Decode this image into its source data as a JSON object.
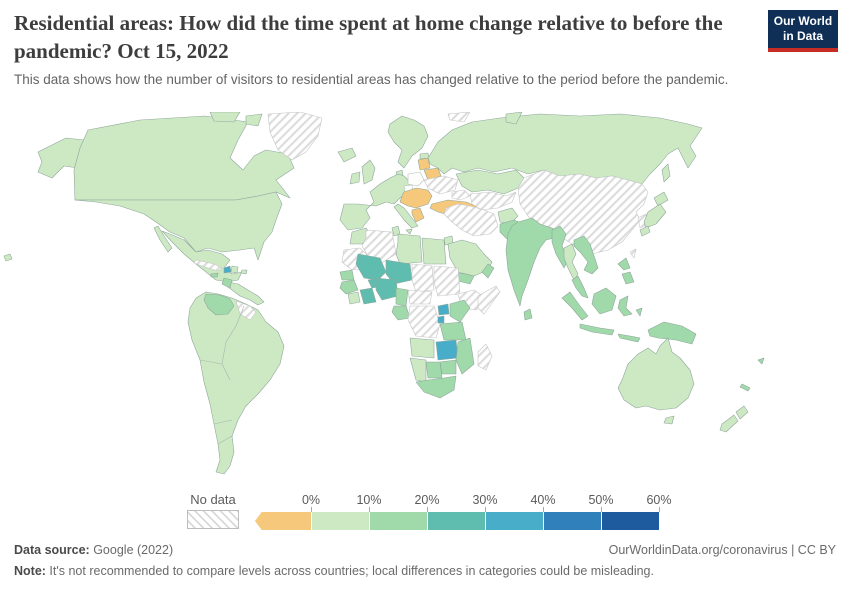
{
  "header": {
    "title": "Residential areas: How did the time spent at home change relative to before the pandemic? Oct 15, 2022",
    "subtitle": "This data shows how the number of visitors to residential areas has changed relative to the period before the pandemic.",
    "logo": {
      "line1": "Our World",
      "line2": "in Data"
    }
  },
  "colors": {
    "logo_bg": "#0f2f57",
    "logo_stripe": "#c62d25",
    "border_stroke": "#8fa79b",
    "nodata_stroke": "#c6c6c6"
  },
  "legend": {
    "no_data_label": "No data",
    "ticks": [
      "0%",
      "10%",
      "20%",
      "30%",
      "40%",
      "50%",
      "60%"
    ]
  },
  "footer": {
    "source_label": "Data source:",
    "source_value": " Google (2022)",
    "right_text": "OurWorldinData.org/coronavirus | CC BY",
    "note_label": "Note:",
    "note_value": " It's not recommended to compare levels across countries; local differences in categories could be misleading."
  },
  "chart_data": {
    "type": "choropleth",
    "title": "Residential areas: change in time spent at home relative to pre-pandemic",
    "date": "Oct 15, 2022",
    "unit": "% change vs. pre-pandemic baseline",
    "bins": [
      "<0%",
      "0-10%",
      "10-20%",
      "20-30%",
      "30-40%",
      "40-50%",
      "50-60%"
    ],
    "bin_colors": {
      "<0%": "#f6c87c",
      "~0%": "#fdfdfc",
      "0-10%": "#cde9c4",
      "10-20%": "#a0d9aa",
      "20-30%": "#5fbdb0",
      "30-40%": "#48adc9",
      "40-50%": "#2f80bb",
      "50-60%": "#1d5b9e",
      "No data": "hatch"
    },
    "countries": [
      {
        "name": "United States",
        "bin": "0-10%"
      },
      {
        "name": "Canada",
        "bin": "0-10%"
      },
      {
        "name": "Greenland",
        "bin": "No data"
      },
      {
        "name": "Iceland",
        "bin": "0-10%"
      },
      {
        "name": "Mexico",
        "bin": "0-10%"
      },
      {
        "name": "Guatemala",
        "bin": "10-20%"
      },
      {
        "name": "Honduras",
        "bin": "0-10%"
      },
      {
        "name": "Cuba",
        "bin": "No data"
      },
      {
        "name": "Haiti",
        "bin": "30-40%"
      },
      {
        "name": "Dominican Republic",
        "bin": "0-10%"
      },
      {
        "name": "Jamaica",
        "bin": "10-20%"
      },
      {
        "name": "Puerto Rico",
        "bin": "0-10%"
      },
      {
        "name": "Venezuela",
        "bin": "10-20%"
      },
      {
        "name": "Guyana",
        "bin": "No data"
      },
      {
        "name": "Brazil",
        "bin": "0-10%"
      },
      {
        "name": "Colombia",
        "bin": "0-10%"
      },
      {
        "name": "Peru",
        "bin": "0-10%"
      },
      {
        "name": "Bolivia",
        "bin": "0-10%"
      },
      {
        "name": "Chile",
        "bin": "0-10%"
      },
      {
        "name": "Argentina",
        "bin": "0-10%"
      },
      {
        "name": "United Kingdom",
        "bin": "0-10%"
      },
      {
        "name": "Ireland",
        "bin": "0-10%"
      },
      {
        "name": "France",
        "bin": "0-10%"
      },
      {
        "name": "Norway",
        "bin": "0-10%"
      },
      {
        "name": "Denmark",
        "bin": "0-10%"
      },
      {
        "name": "Estonia",
        "bin": "0-10%"
      },
      {
        "name": "Italy",
        "bin": "0-10%"
      },
      {
        "name": "Poland",
        "bin": "~0%"
      },
      {
        "name": "Czechia",
        "bin": "~0%"
      },
      {
        "name": "Latvia",
        "bin": "<0%"
      },
      {
        "name": "Belarus",
        "bin": "<0%"
      },
      {
        "name": "Ukraine",
        "bin": "No data"
      },
      {
        "name": "Hungary",
        "bin": "<0%"
      },
      {
        "name": "Greece",
        "bin": "<0%"
      },
      {
        "name": "Turkey",
        "bin": "<0%"
      },
      {
        "name": "Russia",
        "bin": "0-10%"
      },
      {
        "name": "Svalbard",
        "bin": "No data"
      },
      {
        "name": "Kazakhstan",
        "bin": "0-10%"
      },
      {
        "name": "Uzbekistan",
        "bin": "No data"
      },
      {
        "name": "Georgia",
        "bin": "No data"
      },
      {
        "name": "Iran",
        "bin": "No data"
      },
      {
        "name": "Jordan",
        "bin": "0-10%"
      },
      {
        "name": "Saudi Arabia",
        "bin": "0-10%"
      },
      {
        "name": "Yemen",
        "bin": "10-20%"
      },
      {
        "name": "Oman",
        "bin": "10-20%"
      },
      {
        "name": "Afghanistan",
        "bin": "0-10%"
      },
      {
        "name": "Pakistan",
        "bin": "10-20%"
      },
      {
        "name": "India",
        "bin": "10-20%"
      },
      {
        "name": "Sri Lanka",
        "bin": "10-20%"
      },
      {
        "name": "China",
        "bin": "No data"
      },
      {
        "name": "South Korea",
        "bin": "No data"
      },
      {
        "name": "Japan",
        "bin": "0-10%"
      },
      {
        "name": "Taiwan",
        "bin": "No data"
      },
      {
        "name": "Myanmar",
        "bin": "10-20%"
      },
      {
        "name": "Thailand",
        "bin": "0-10%"
      },
      {
        "name": "Vietnam",
        "bin": "10-20%"
      },
      {
        "name": "Malaysia",
        "bin": "10-20%"
      },
      {
        "name": "Indonesia",
        "bin": "10-20%"
      },
      {
        "name": "Philippines",
        "bin": "10-20%"
      },
      {
        "name": "Papua New Guinea",
        "bin": "10-20%"
      },
      {
        "name": "Australia",
        "bin": "0-10%"
      },
      {
        "name": "New Zealand",
        "bin": "0-10%"
      },
      {
        "name": "Fiji",
        "bin": "10-20%"
      },
      {
        "name": "New Caledonia",
        "bin": "10-20%"
      },
      {
        "name": "Morocco",
        "bin": "0-10%"
      },
      {
        "name": "Algeria",
        "bin": "No data"
      },
      {
        "name": "Tunisia",
        "bin": "0-10%"
      },
      {
        "name": "Libya",
        "bin": "0-10%"
      },
      {
        "name": "Egypt",
        "bin": "0-10%"
      },
      {
        "name": "Mauritania",
        "bin": "No data"
      },
      {
        "name": "Senegal",
        "bin": "10-20%"
      },
      {
        "name": "Guinea",
        "bin": "10-20%"
      },
      {
        "name": "Ivory Coast",
        "bin": "0-10%"
      },
      {
        "name": "Ghana",
        "bin": "20-30%"
      },
      {
        "name": "Mali",
        "bin": "20-30%"
      },
      {
        "name": "Burkina Faso",
        "bin": "20-30%"
      },
      {
        "name": "Niger",
        "bin": "20-30%"
      },
      {
        "name": "Nigeria",
        "bin": "20-30%"
      },
      {
        "name": "Cameroon",
        "bin": "10-20%"
      },
      {
        "name": "Chad",
        "bin": "No data"
      },
      {
        "name": "Sudan",
        "bin": "No data"
      },
      {
        "name": "Central African Republic",
        "bin": "No data"
      },
      {
        "name": "Ethiopia",
        "bin": "No data"
      },
      {
        "name": "Somalia",
        "bin": "No data"
      },
      {
        "name": "Kenya",
        "bin": "10-20%"
      },
      {
        "name": "Uganda",
        "bin": "30-40%"
      },
      {
        "name": "Rwanda",
        "bin": "30-40%"
      },
      {
        "name": "Tanzania",
        "bin": "10-20%"
      },
      {
        "name": "Gabon",
        "bin": "10-20%"
      },
      {
        "name": "Democratic Republic of Congo",
        "bin": "No data"
      },
      {
        "name": "Angola",
        "bin": "0-10%"
      },
      {
        "name": "Zambia",
        "bin": "30-40%"
      },
      {
        "name": "Mozambique",
        "bin": "10-20%"
      },
      {
        "name": "Zimbabwe",
        "bin": "10-20%"
      },
      {
        "name": "Botswana",
        "bin": "10-20%"
      },
      {
        "name": "Namibia",
        "bin": "0-10%"
      },
      {
        "name": "South Africa",
        "bin": "10-20%"
      },
      {
        "name": "Madagascar",
        "bin": "No data"
      }
    ]
  }
}
